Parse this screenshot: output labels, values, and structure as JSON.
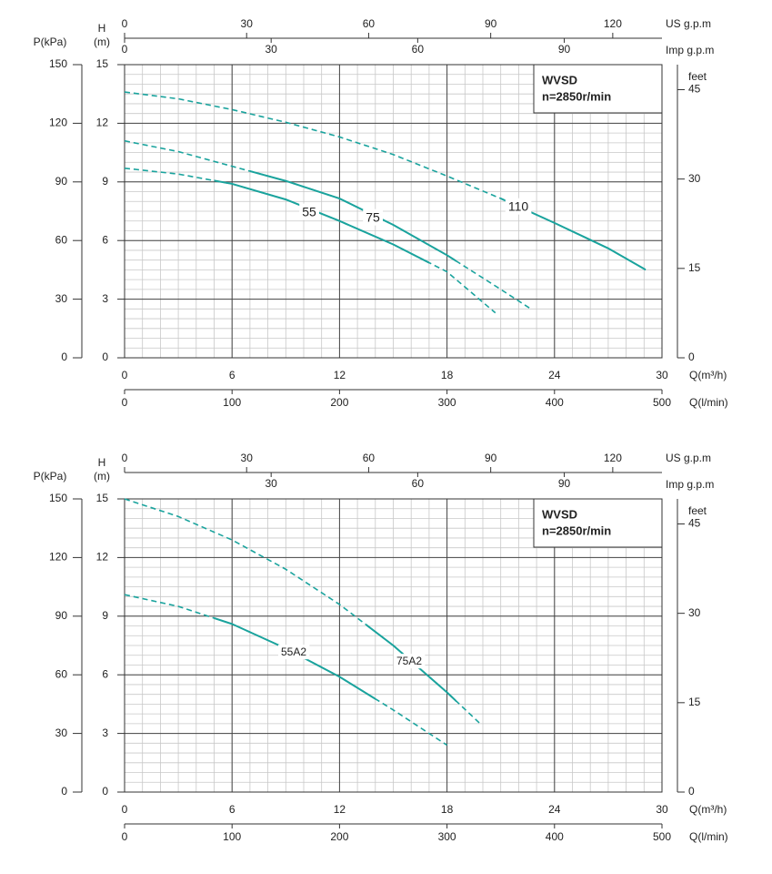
{
  "chart_data": [
    {
      "type": "line",
      "box_lines": [
        "WVSD",
        "n=2850r/min"
      ],
      "xlabel": "Q(m³/h)",
      "ylabel": [
        "H",
        "(m)"
      ],
      "xlim": [
        0,
        30
      ],
      "xticks": [
        0,
        6,
        12,
        18,
        24,
        30
      ],
      "ylim": [
        0,
        15
      ],
      "yticks": [
        0,
        3,
        6,
        9,
        12,
        15
      ],
      "x_minor": 1,
      "y_minor": 0.5,
      "grid": true,
      "axes": {
        "us": {
          "label": "US g.p.m",
          "lim": [
            0,
            132.1
          ],
          "ticks": [
            0,
            30,
            60,
            90,
            120
          ]
        },
        "imp": {
          "label": "Imp g.p.m",
          "lim": [
            0,
            110
          ],
          "ticks": [
            0,
            30,
            60,
            90
          ]
        },
        "lmin": {
          "label": "Q(l/min)",
          "lim": [
            0,
            500
          ],
          "ticks": [
            0,
            100,
            200,
            300,
            400,
            500
          ]
        },
        "kpa": {
          "label": "P(kPa)",
          "lim": [
            0,
            150
          ],
          "ticks": [
            0,
            30,
            60,
            90,
            120,
            150
          ]
        },
        "feet": {
          "label": "feet",
          "lim": [
            0,
            49.2
          ],
          "ticks": [
            0,
            15,
            30,
            45
          ]
        }
      },
      "series": [
        {
          "name": "55",
          "color": "#1aa39d",
          "solid": [
            5,
            17
          ],
          "x": [
            0,
            3,
            6,
            9,
            12,
            15,
            18,
            20.7
          ],
          "values": [
            9.7,
            9.4,
            8.9,
            8.1,
            7.0,
            5.8,
            4.4,
            2.3
          ]
        },
        {
          "name": "75",
          "color": "#1aa39d",
          "solid": [
            7,
            18.5
          ],
          "x": [
            0,
            3,
            6,
            9,
            12,
            15,
            18,
            21,
            22.6
          ],
          "values": [
            11.1,
            10.55,
            9.8,
            9.05,
            8.15,
            6.8,
            5.25,
            3.5,
            2.55
          ]
        },
        {
          "name": "110",
          "color": "#1aa39d",
          "solid": [
            21,
            29.1
          ],
          "x": [
            0,
            3,
            6,
            9,
            12,
            15,
            18,
            21,
            24,
            27,
            29.1
          ],
          "values": [
            13.6,
            13.25,
            12.7,
            12.05,
            11.3,
            10.4,
            9.3,
            8.15,
            6.9,
            5.6,
            4.5
          ]
        }
      ]
    },
    {
      "type": "line",
      "box_lines": [
        "WVSD",
        "n=2850r/min"
      ],
      "xlabel": "Q(m³/h)",
      "ylabel": [
        "H",
        "(m)"
      ],
      "xlim": [
        0,
        30
      ],
      "xticks": [
        0,
        6,
        12,
        18,
        24,
        30
      ],
      "ylim": [
        0,
        15
      ],
      "yticks": [
        0,
        3,
        6,
        9,
        12,
        15
      ],
      "x_minor": 1,
      "y_minor": 0.5,
      "grid": true,
      "axes": {
        "us": {
          "label": "US g.p.m",
          "lim": [
            0,
            132.1
          ],
          "ticks": [
            0,
            30,
            60,
            90,
            120
          ]
        },
        "imp": {
          "label": "Imp g.p.m",
          "lim": [
            0,
            110
          ],
          "ticks": [
            30,
            60,
            90
          ]
        },
        "lmin": {
          "label": "Q(l/min)",
          "lim": [
            0,
            500
          ],
          "ticks": [
            0,
            100,
            200,
            300,
            400,
            500
          ]
        },
        "kpa": {
          "label": "P(kPa)",
          "lim": [
            0,
            150
          ],
          "ticks": [
            0,
            30,
            60,
            90,
            120,
            150
          ]
        },
        "feet": {
          "label": "feet",
          "lim": [
            0,
            49.2
          ],
          "ticks": [
            0,
            15,
            30,
            45
          ]
        }
      },
      "series": [
        {
          "name": "55A2",
          "color": "#1aa39d",
          "solid": [
            5,
            14
          ],
          "x": [
            0,
            3,
            6,
            9,
            12,
            15,
            18
          ],
          "values": [
            10.1,
            9.5,
            8.6,
            7.35,
            5.9,
            4.2,
            2.4
          ]
        },
        {
          "name": "75A2",
          "color": "#1aa39d",
          "solid": [
            13.5,
            18.5
          ],
          "x": [
            0,
            3,
            6,
            9,
            12,
            15,
            18,
            19.85
          ],
          "values": [
            15,
            14.1,
            12.9,
            11.4,
            9.6,
            7.5,
            5.1,
            3.5
          ]
        }
      ]
    }
  ]
}
